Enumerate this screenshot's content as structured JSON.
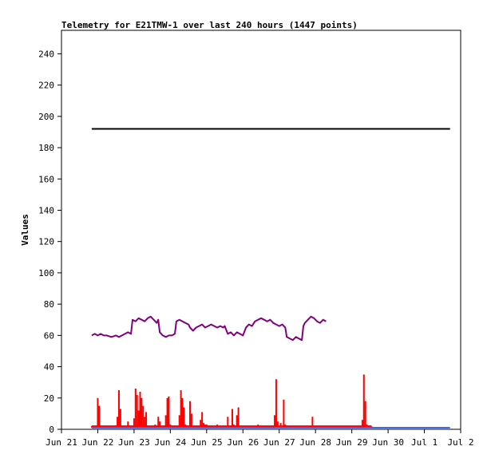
{
  "chart_data": {
    "type": "line",
    "title": "Telemetry for E21TMW-1 over last 240 hours (1447 points)",
    "ylabel": "Values",
    "xlabel": "",
    "ylim": [
      0,
      255
    ],
    "xlim_hours": [
      0,
      264
    ],
    "y_ticks": [
      0,
      20,
      40,
      60,
      80,
      100,
      120,
      140,
      160,
      180,
      200,
      220,
      240
    ],
    "x_ticks": [
      {
        "label": "Jun 21",
        "hour": 0
      },
      {
        "label": "Jun 22",
        "hour": 24
      },
      {
        "label": "Jun 23",
        "hour": 48
      },
      {
        "label": "Jun 24",
        "hour": 72
      },
      {
        "label": "Jun 25",
        "hour": 96
      },
      {
        "label": "Jun 26",
        "hour": 120
      },
      {
        "label": "Jun 27",
        "hour": 144
      },
      {
        "label": "Jun 28",
        "hour": 168
      },
      {
        "label": "Jun 29",
        "hour": 192
      },
      {
        "label": "Jun 30",
        "hour": 216
      },
      {
        "label": "Jul 1",
        "hour": 240
      },
      {
        "label": "Jul 2",
        "hour": 264
      }
    ],
    "grid": false,
    "series": [
      {
        "color": "#000000",
        "style": "line",
        "points": [
          [
            20,
            192
          ],
          [
            257,
            192
          ]
        ]
      },
      {
        "color": "#800080",
        "style": "line",
        "points": [
          [
            20,
            60
          ],
          [
            22,
            61
          ],
          [
            24,
            60
          ],
          [
            26,
            61
          ],
          [
            28,
            60
          ],
          [
            30,
            60
          ],
          [
            33,
            59
          ],
          [
            36,
            60
          ],
          [
            38,
            59
          ],
          [
            40,
            60
          ],
          [
            42,
            61
          ],
          [
            44,
            62
          ],
          [
            46,
            61
          ],
          [
            47,
            70
          ],
          [
            49,
            69
          ],
          [
            51,
            71
          ],
          [
            53,
            70
          ],
          [
            55,
            69
          ],
          [
            57,
            71
          ],
          [
            59,
            72
          ],
          [
            61,
            70
          ],
          [
            63,
            68
          ],
          [
            64,
            70
          ],
          [
            65,
            62
          ],
          [
            67,
            60
          ],
          [
            69,
            59
          ],
          [
            71,
            60
          ],
          [
            73,
            60
          ],
          [
            75,
            61
          ],
          [
            76,
            69
          ],
          [
            78,
            70
          ],
          [
            80,
            69
          ],
          [
            82,
            68
          ],
          [
            84,
            67
          ],
          [
            85,
            65
          ],
          [
            87,
            63
          ],
          [
            89,
            65
          ],
          [
            91,
            66
          ],
          [
            93,
            67
          ],
          [
            95,
            65
          ],
          [
            97,
            66
          ],
          [
            99,
            67
          ],
          [
            101,
            66
          ],
          [
            103,
            65
          ],
          [
            105,
            66
          ],
          [
            107,
            65
          ],
          [
            108,
            66
          ],
          [
            110,
            61
          ],
          [
            112,
            62
          ],
          [
            114,
            60
          ],
          [
            116,
            62
          ],
          [
            118,
            61
          ],
          [
            120,
            60
          ],
          [
            122,
            65
          ],
          [
            124,
            67
          ],
          [
            126,
            66
          ],
          [
            128,
            69
          ],
          [
            130,
            70
          ],
          [
            132,
            71
          ],
          [
            134,
            70
          ],
          [
            136,
            69
          ],
          [
            138,
            70
          ],
          [
            140,
            68
          ],
          [
            142,
            67
          ],
          [
            144,
            66
          ],
          [
            146,
            67
          ],
          [
            148,
            65
          ],
          [
            149,
            59
          ],
          [
            151,
            58
          ],
          [
            153,
            57
          ],
          [
            155,
            59
          ],
          [
            157,
            58
          ],
          [
            159,
            57
          ],
          [
            160,
            66
          ],
          [
            161,
            68
          ],
          [
            163,
            70
          ],
          [
            165,
            72
          ],
          [
            167,
            71
          ],
          [
            169,
            69
          ],
          [
            171,
            68
          ],
          [
            173,
            70
          ],
          [
            175,
            69
          ]
        ]
      },
      {
        "color": "#ff0000",
        "style": "spikes",
        "baseline": 2,
        "points": [
          [
            20,
            1
          ],
          [
            24,
            20
          ],
          [
            25,
            15
          ],
          [
            28,
            2
          ],
          [
            31,
            1
          ],
          [
            37,
            8
          ],
          [
            38,
            25
          ],
          [
            39,
            13
          ],
          [
            43,
            2
          ],
          [
            44,
            5
          ],
          [
            48,
            7
          ],
          [
            49,
            26
          ],
          [
            50,
            22
          ],
          [
            51,
            12
          ],
          [
            52,
            24
          ],
          [
            53,
            20
          ],
          [
            54,
            15
          ],
          [
            55,
            8
          ],
          [
            56,
            11
          ],
          [
            58,
            2
          ],
          [
            60,
            1
          ],
          [
            62,
            3
          ],
          [
            64,
            8
          ],
          [
            65,
            5
          ],
          [
            67,
            2
          ],
          [
            69,
            9
          ],
          [
            70,
            20
          ],
          [
            71,
            21
          ],
          [
            72,
            3
          ],
          [
            73,
            2
          ],
          [
            78,
            9
          ],
          [
            79,
            25
          ],
          [
            80,
            20
          ],
          [
            81,
            14
          ],
          [
            82,
            3
          ],
          [
            85,
            18
          ],
          [
            86,
            10
          ],
          [
            88,
            2
          ],
          [
            92,
            6
          ],
          [
            93,
            11
          ],
          [
            94,
            4
          ],
          [
            95,
            3
          ],
          [
            96,
            3
          ],
          [
            100,
            2
          ],
          [
            103,
            3
          ],
          [
            110,
            8
          ],
          [
            111,
            2
          ],
          [
            113,
            13
          ],
          [
            114,
            3
          ],
          [
            116,
            9
          ],
          [
            117,
            14
          ],
          [
            118,
            2
          ],
          [
            126,
            2
          ],
          [
            130,
            3
          ],
          [
            140,
            2
          ],
          [
            141,
            9
          ],
          [
            142,
            32
          ],
          [
            143,
            5
          ],
          [
            144,
            2
          ],
          [
            145,
            4
          ],
          [
            147,
            19
          ],
          [
            148,
            3
          ],
          [
            160,
            2
          ],
          [
            166,
            8
          ],
          [
            167,
            2
          ],
          [
            170,
            2
          ],
          [
            180,
            2
          ],
          [
            190,
            2
          ],
          [
            197,
            2
          ],
          [
            199,
            6
          ],
          [
            200,
            35
          ],
          [
            201,
            18
          ],
          [
            202,
            3
          ],
          [
            204,
            2
          ],
          [
            205,
            1
          ]
        ]
      },
      {
        "color": "#4169e1",
        "style": "line",
        "points": [
          [
            20,
            1
          ],
          [
            257,
            1
          ]
        ]
      }
    ]
  }
}
